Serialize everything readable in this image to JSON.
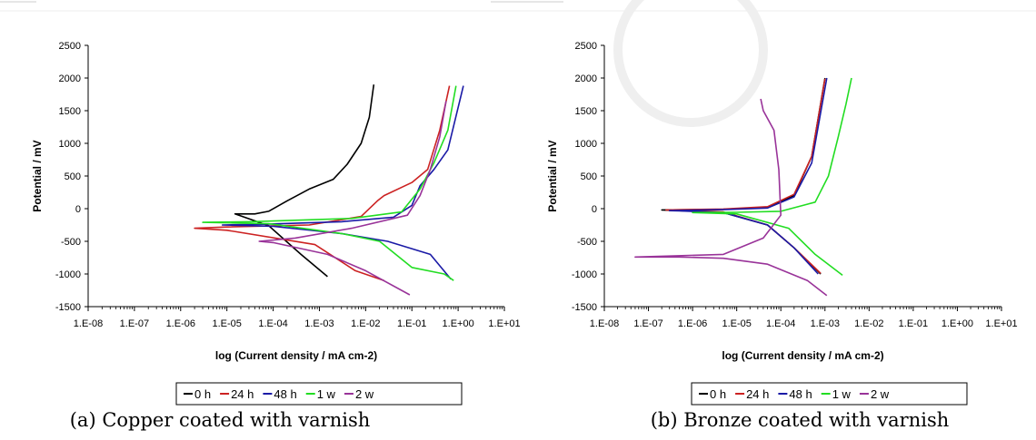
{
  "colors": {
    "0 h": "#000000",
    "24 h": "#cc2222",
    "48 h": "#1a1aa6",
    "1 w": "#22dd22",
    "2 w": "#993399"
  },
  "chart_data": [
    {
      "type": "line",
      "x_scale": "log",
      "caption": "(a) Copper coated with varnish",
      "xlabel": "log (Current density / mA cm-2)",
      "ylabel": "Potential / mV",
      "xlim": [
        1e-08,
        10
      ],
      "ylim": [
        -1500,
        2500
      ],
      "x_ticks": [
        "1.E-08",
        "1.E-07",
        "1.E-06",
        "1.E-05",
        "1.E-04",
        "1.E-03",
        "1.E-02",
        "1.E-01",
        "1.E+00",
        "1.E+01"
      ],
      "y_ticks": [
        "2500",
        "2000",
        "1500",
        "1000",
        "500",
        "0",
        "-500",
        "-1000",
        "-1500"
      ],
      "grid": false,
      "legend_position": "bottom",
      "series": [
        {
          "name": "0 h",
          "points": [
            [
              0.0015,
              -1040
            ],
            [
              0.0004,
              -700
            ],
            [
              8e-05,
              -260
            ],
            [
              1.5e-05,
              -80
            ],
            [
              4e-05,
              -80
            ],
            [
              8e-05,
              -40
            ],
            [
              0.0002,
              120
            ],
            [
              0.0006,
              300
            ],
            [
              0.002,
              450
            ],
            [
              0.004,
              680
            ],
            [
              0.008,
              1000
            ],
            [
              0.012,
              1400
            ],
            [
              0.015,
              1900
            ]
          ]
        },
        {
          "name": "24 h",
          "points": [
            [
              0.025,
              -1100
            ],
            [
              0.006,
              -950
            ],
            [
              0.0008,
              -550
            ],
            [
              1e-05,
              -330
            ],
            [
              2e-06,
              -300
            ],
            [
              1e-05,
              -280
            ],
            [
              0.0006,
              -250
            ],
            [
              0.008,
              -120
            ],
            [
              0.018,
              120
            ],
            [
              0.025,
              200
            ],
            [
              0.1,
              400
            ],
            [
              0.22,
              600
            ],
            [
              0.4,
              1200
            ],
            [
              0.65,
              1880
            ]
          ]
        },
        {
          "name": "48 h",
          "points": [
            [
              0.7,
              -1080
            ],
            [
              0.25,
              -700
            ],
            [
              0.03,
              -500
            ],
            [
              0.003,
              -380
            ],
            [
              0.0001,
              -270
            ],
            [
              8e-06,
              -250
            ],
            [
              5e-05,
              -240
            ],
            [
              0.003,
              -200
            ],
            [
              0.04,
              -130
            ],
            [
              0.1,
              50
            ],
            [
              0.15,
              350
            ],
            [
              0.3,
              600
            ],
            [
              0.6,
              900
            ],
            [
              1.3,
              1880
            ]
          ]
        },
        {
          "name": "1 w",
          "points": [
            [
              0.8,
              -1100
            ],
            [
              0.5,
              -1000
            ],
            [
              0.1,
              -900
            ],
            [
              0.02,
              -500
            ],
            [
              0.003,
              -380
            ],
            [
              8e-05,
              -230
            ],
            [
              3e-06,
              -210
            ],
            [
              3e-05,
              -200
            ],
            [
              0.005,
              -150
            ],
            [
              0.06,
              -50
            ],
            [
              0.15,
              300
            ],
            [
              0.3,
              700
            ],
            [
              0.6,
              1200
            ],
            [
              0.9,
              1880
            ]
          ]
        },
        {
          "name": "2 w",
          "points": [
            [
              0.09,
              -1320
            ],
            [
              0.01,
              -950
            ],
            [
              0.0015,
              -700
            ],
            [
              0.0001,
              -520
            ],
            [
              5e-05,
              -500
            ],
            [
              0.0003,
              -450
            ],
            [
              0.005,
              -300
            ],
            [
              0.08,
              -100
            ],
            [
              0.15,
              200
            ],
            [
              0.25,
              600
            ],
            [
              0.4,
              1100
            ],
            [
              0.55,
              1650
            ]
          ]
        }
      ]
    },
    {
      "type": "line",
      "x_scale": "log",
      "caption": "(b) Bronze coated with varnish",
      "xlabel": "log (Current density / mA cm-2)",
      "ylabel": "Potential / mV",
      "xlim": [
        1e-08,
        10
      ],
      "ylim": [
        -1500,
        2500
      ],
      "x_ticks": [
        "1.E-08",
        "1.E-07",
        "1.E-06",
        "1.E-05",
        "1.E-04",
        "1.E-03",
        "1.E-02",
        "1.E-01",
        "1.E+00",
        "1.E+01"
      ],
      "y_ticks": [
        "2500",
        "2000",
        "1500",
        "1000",
        "500",
        "0",
        "-500",
        "-1000",
        "-1500"
      ],
      "grid": false,
      "legend_position": "bottom",
      "series": [
        {
          "name": "0 h",
          "points": [
            [
              0.0008,
              -1000
            ],
            [
              0.0002,
              -600
            ],
            [
              5e-05,
              -250
            ],
            [
              5e-06,
              -60
            ],
            [
              5e-07,
              -30
            ],
            [
              2e-07,
              -20
            ],
            [
              5e-06,
              -10
            ],
            [
              5e-05,
              20
            ],
            [
              0.0002,
              200
            ],
            [
              0.0005,
              800
            ],
            [
              0.001,
              2000
            ]
          ]
        },
        {
          "name": "24 h",
          "points": [
            [
              0.0008,
              -990
            ],
            [
              0.0002,
              -600
            ],
            [
              5e-05,
              -250
            ],
            [
              5e-06,
              -50
            ],
            [
              5e-07,
              -25
            ],
            [
              2.5e-07,
              -20
            ],
            [
              5e-06,
              -5
            ],
            [
              5e-05,
              30
            ],
            [
              0.0002,
              220
            ],
            [
              0.0005,
              800
            ],
            [
              0.001,
              1990
            ]
          ]
        },
        {
          "name": "48 h",
          "points": [
            [
              0.0007,
              -1000
            ],
            [
              0.0002,
              -600
            ],
            [
              5e-05,
              -250
            ],
            [
              5e-06,
              -60
            ],
            [
              5e-07,
              -35
            ],
            [
              3e-07,
              -30
            ],
            [
              5e-06,
              -15
            ],
            [
              5e-05,
              10
            ],
            [
              0.0002,
              180
            ],
            [
              0.0005,
              700
            ],
            [
              0.0011,
              2000
            ]
          ]
        },
        {
          "name": "1 w",
          "points": [
            [
              0.0025,
              -1020
            ],
            [
              0.0006,
              -700
            ],
            [
              0.00015,
              -300
            ],
            [
              1e-05,
              -80
            ],
            [
              1e-06,
              -60
            ],
            [
              1e-05,
              -55
            ],
            [
              0.0001,
              -40
            ],
            [
              0.0006,
              100
            ],
            [
              0.0012,
              500
            ],
            [
              0.002,
              1100
            ],
            [
              0.003,
              1600
            ],
            [
              0.004,
              2000
            ]
          ]
        },
        {
          "name": "2 w",
          "points": [
            [
              0.0011,
              -1330
            ],
            [
              0.0004,
              -1100
            ],
            [
              5e-05,
              -850
            ],
            [
              5e-06,
              -760
            ],
            [
              5e-07,
              -740
            ],
            [
              5e-08,
              -740
            ],
            [
              5e-06,
              -700
            ],
            [
              4e-05,
              -450
            ],
            [
              0.0001,
              -100
            ],
            [
              9e-05,
              600
            ],
            [
              7e-05,
              1200
            ],
            [
              4e-05,
              1500
            ],
            [
              3.5e-05,
              1680
            ]
          ]
        }
      ]
    }
  ]
}
